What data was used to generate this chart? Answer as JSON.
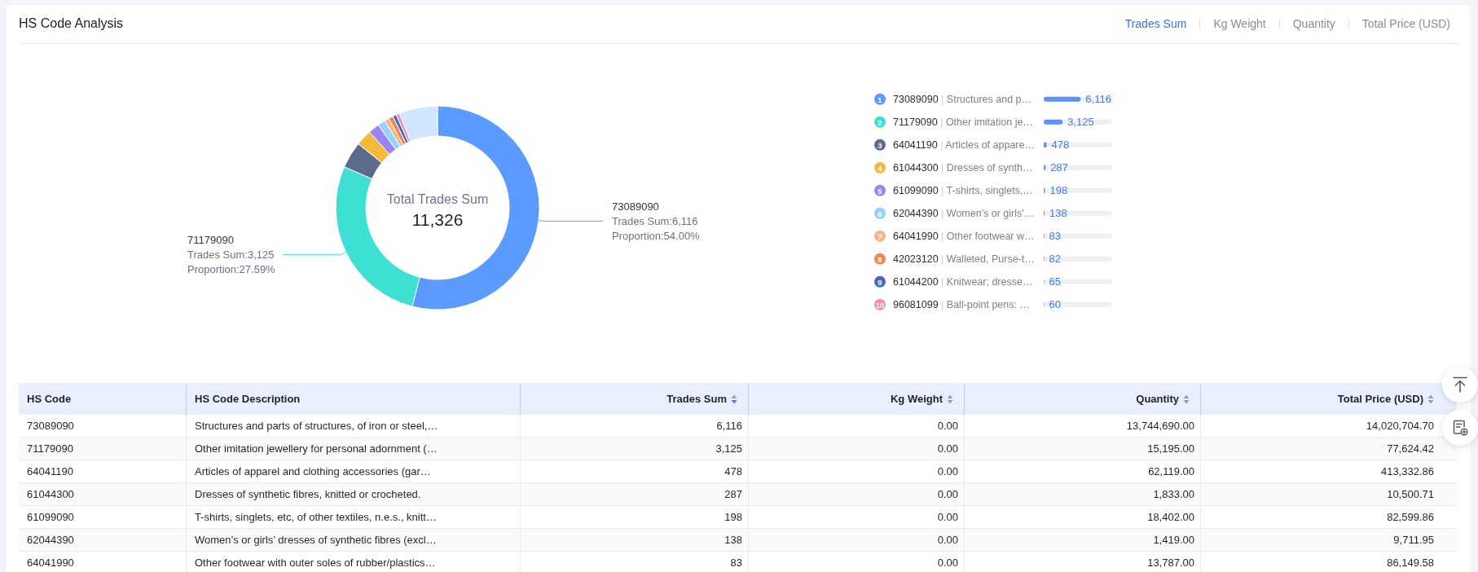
{
  "chart_data": [
    {
      "type": "other",
      "title": "HS Code Analysis",
      "annotations": [
        "Trades Sum",
        "Kg Weight",
        "Quantity",
        "Total Price (USD)"
      ]
    },
    {
      "type": "donut",
      "categories": [
        null,
        null,
        null,
        null,
        null,
        null,
        null,
        null,
        null,
        null,
        null
      ],
      "values": [
        6116,
        3125,
        478,
        287,
        198,
        138,
        83,
        82,
        65,
        60,
        694
      ],
      "colors": [
        "#5b9bff",
        "#3de0d3",
        "#5b6b8c",
        "#f5b93a",
        "#9b82f5",
        "#92d3ff",
        "#f8b689",
        "#f0894a",
        "#4a65c2",
        "#f38dba",
        "#d0e5ff"
      ],
      "value_labels": [
        "73089090\nTrades Sum:6,116\nProportion:54.00%",
        "71179090\nTrades Sum:3,125\nProportion:27.59%",
        null,
        null,
        null,
        null,
        null,
        null,
        null,
        null,
        null
      ],
      "annotations": [
        "Total Trades Sum",
        "11,326"
      ]
    },
    {
      "type": "bar",
      "orientation": "horizontal",
      "categories": [
        "73089090 | Structures and p…",
        "71179090 | Other imitation je…",
        "64041190 | Articles of appare…",
        "61044300 | Dresses of synth…",
        "61099090 | T-shirts, singlets,…",
        "62044390 | Women's or girls'…",
        "64041990 | Other footwear w…",
        "42023120 | Walleted, Purse-t…",
        "61044200 | Knitwear; dresse…",
        "96081099 | Ball-point pens: …"
      ],
      "values": [
        6116,
        3125,
        478,
        287,
        198,
        138,
        83,
        82,
        65,
        60
      ],
      "value_labels": [
        "6,116",
        "3,125",
        "478",
        "287",
        "198",
        "138",
        "83",
        "82",
        "65",
        "60"
      ],
      "color": "#5b93fa",
      "tick_labels": "y",
      "annotations": [
        "1",
        "2",
        "3",
        "4",
        "5",
        "6",
        "7",
        "8",
        "9",
        "10"
      ]
    },
    {
      "type": "other",
      "ylabel": "HS Code",
      "y2label": "HS Code Description",
      "categories": [
        "Trades Sum",
        "Kg Weight",
        "Quantity",
        "Total Price (USD)"
      ],
      "y_categories": [
        "73089090",
        "71179090",
        "64041190",
        "61044300",
        "61099090",
        "62044390",
        "64041990"
      ],
      "y2_categories": [
        "Structures and parts of structures, of iron or steel,…",
        "Other imitation jewellery for personal adornment (…",
        "Articles of apparel and clothing accessories (gar…",
        "Dresses of synthetic fibres, knitted or crocheted.",
        "T-shirts, singlets, etc, of other textiles, n.e.s., knitt…",
        "Women’s or girls’ dresses of synthetic fibres (excl…",
        "Other footwear with outer soles of rubber/plastics…"
      ],
      "cell_labels": [
        [
          "6,116",
          "0.00",
          "13,744,690.00",
          "14,020,704.70"
        ],
        [
          "3,125",
          "0.00",
          "15,195.00",
          "77,624.42"
        ],
        [
          "478",
          "0.00",
          "62,119.00",
          "413,332.86"
        ],
        [
          "287",
          "0.00",
          "1,833.00",
          "10,500.71"
        ],
        [
          "198",
          "0.00",
          "18,402.00",
          "82,599.86"
        ],
        [
          "138",
          "0.00",
          "1,419.00",
          "9,711.95"
        ],
        [
          "83",
          "0.00",
          "13,787.00",
          "86,149.58"
        ]
      ]
    }
  ]
}
